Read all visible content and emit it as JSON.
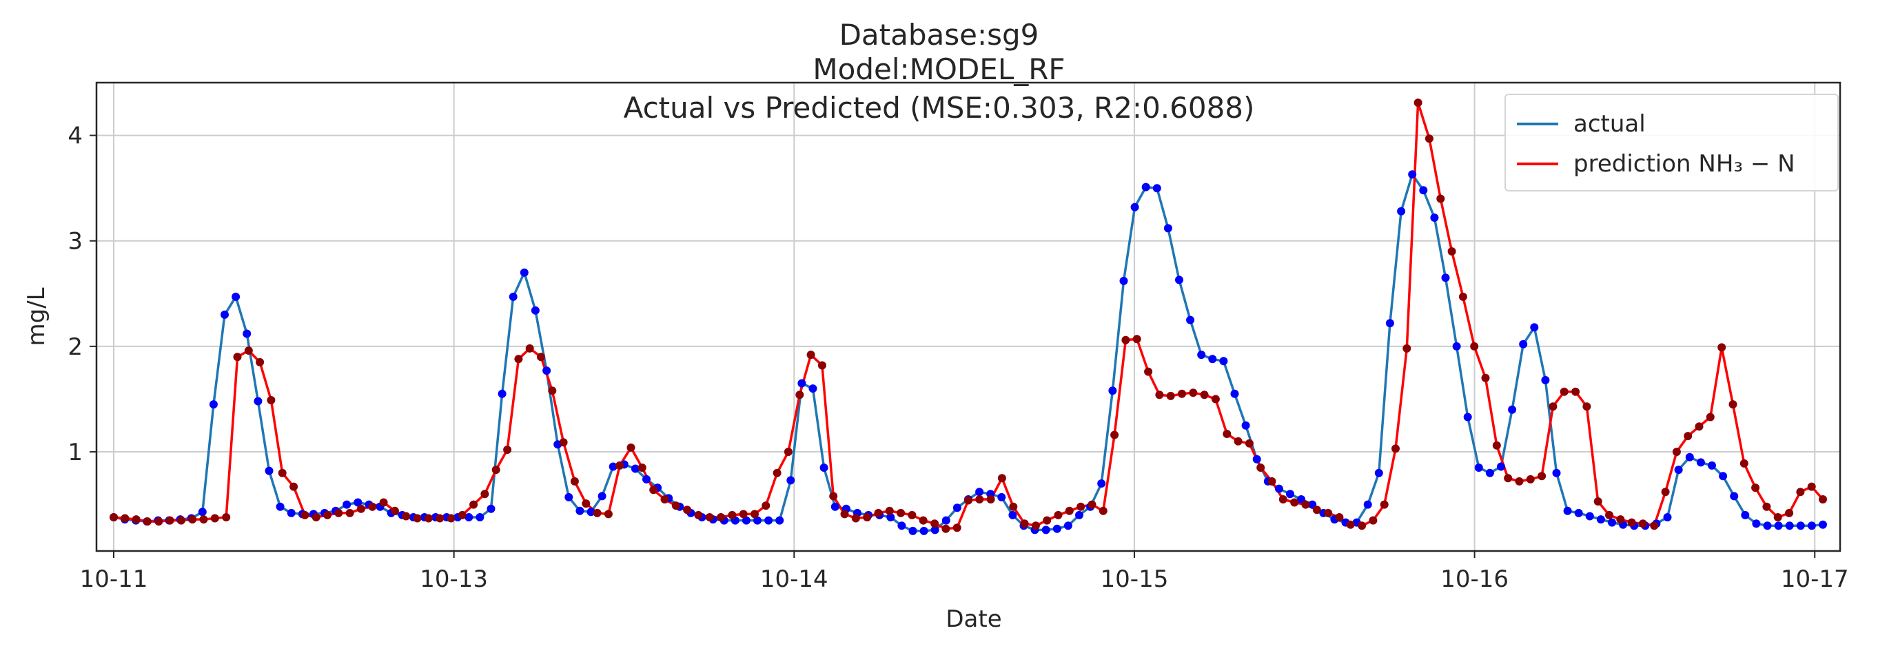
{
  "title": {
    "line1": "Database:sg9",
    "line2": "Model:MODEL_RF",
    "line3": "Actual vs Predicted (MSE:0.303, R2:0.6088)"
  },
  "legend": {
    "placement": "top-right",
    "items": [
      {
        "label": "actual",
        "color": "#1f77b4"
      },
      {
        "label": "prediction NH₃ − N",
        "color": "#ff0000"
      }
    ]
  },
  "chart_data": {
    "type": "line",
    "title": "Database:sg9 / Model:MODEL_RF / Actual vs Predicted (MSE:0.303, R2:0.6088)",
    "xlabel": "Date",
    "ylabel": "mg/L",
    "x_tick_labels": [
      "10-11",
      "10-13",
      "10-14",
      "10-15",
      "10-16",
      "10-17"
    ],
    "y_ticks": [
      1,
      2,
      3,
      4
    ],
    "x_range": [
      0,
      180
    ],
    "ylim": [
      0.06,
      4.5
    ],
    "grid": true,
    "point_colors": {
      "actual": "#0000ff",
      "prediction": "#8b0000"
    },
    "series": [
      {
        "name": "actual",
        "color": "#1f77b4",
        "values": [
          0.38,
          0.36,
          0.35,
          0.34,
          0.35,
          0.35,
          0.36,
          0.37,
          0.43,
          1.45,
          2.3,
          2.47,
          2.12,
          1.48,
          0.82,
          0.48,
          0.42,
          0.41,
          0.41,
          0.42,
          0.44,
          0.5,
          0.52,
          0.5,
          0.48,
          0.42,
          0.4,
          0.38,
          0.38,
          0.38,
          0.38,
          0.38,
          0.38,
          0.38,
          0.46,
          1.55,
          2.47,
          2.7,
          2.34,
          1.77,
          1.07,
          0.57,
          0.44,
          0.43,
          0.58,
          0.86,
          0.88,
          0.84,
          0.74,
          0.66,
          0.56,
          0.48,
          0.42,
          0.38,
          0.36,
          0.35,
          0.35,
          0.35,
          0.35,
          0.35,
          0.35,
          0.73,
          1.65,
          1.6,
          0.85,
          0.48,
          0.46,
          0.42,
          0.4,
          0.4,
          0.38,
          0.3,
          0.25,
          0.25,
          0.26,
          0.35,
          0.47,
          0.55,
          0.62,
          0.6,
          0.57,
          0.4,
          0.3,
          0.26,
          0.26,
          0.27,
          0.3,
          0.4,
          0.48,
          0.7,
          1.58,
          2.62,
          3.32,
          3.51,
          3.5,
          3.12,
          2.63,
          2.25,
          1.92,
          1.88,
          1.86,
          1.55,
          1.25,
          0.93,
          0.72,
          0.65,
          0.6,
          0.55,
          0.5,
          0.42,
          0.36,
          0.33,
          0.33,
          0.5,
          0.8,
          2.22,
          3.28,
          3.63,
          3.48,
          3.22,
          2.65,
          2.0,
          1.33,
          0.85,
          0.8,
          0.86,
          1.4,
          2.02,
          2.18,
          1.68,
          0.8,
          0.44,
          0.42,
          0.39,
          0.36,
          0.33,
          0.31,
          0.3,
          0.3,
          0.32,
          0.38,
          0.83,
          0.95,
          0.9,
          0.87,
          0.77,
          0.58,
          0.4,
          0.32,
          0.3,
          0.3,
          0.3,
          0.3,
          0.3,
          0.31
        ]
      },
      {
        "name": "prediction NH₃ − N",
        "color": "#ff0000",
        "values": [
          0.38,
          0.37,
          0.36,
          0.34,
          0.34,
          0.35,
          0.35,
          0.36,
          0.36,
          0.37,
          0.38,
          1.9,
          1.96,
          1.85,
          1.49,
          0.8,
          0.67,
          0.4,
          0.38,
          0.4,
          0.42,
          0.42,
          0.46,
          0.48,
          0.52,
          0.44,
          0.39,
          0.37,
          0.37,
          0.37,
          0.37,
          0.4,
          0.5,
          0.6,
          0.83,
          1.02,
          1.88,
          1.98,
          1.9,
          1.58,
          1.09,
          0.72,
          0.51,
          0.42,
          0.41,
          0.87,
          1.04,
          0.85,
          0.64,
          0.55,
          0.49,
          0.45,
          0.4,
          0.38,
          0.38,
          0.4,
          0.41,
          0.41,
          0.49,
          0.8,
          1.0,
          1.54,
          1.92,
          1.82,
          0.58,
          0.41,
          0.37,
          0.38,
          0.42,
          0.44,
          0.42,
          0.4,
          0.35,
          0.32,
          0.27,
          0.28,
          0.54,
          0.55,
          0.55,
          0.75,
          0.48,
          0.32,
          0.3,
          0.35,
          0.4,
          0.44,
          0.48,
          0.5,
          0.44,
          1.16,
          2.06,
          2.07,
          1.76,
          1.54,
          1.53,
          1.55,
          1.56,
          1.54,
          1.5,
          1.17,
          1.1,
          1.08,
          0.85,
          0.72,
          0.55,
          0.52,
          0.5,
          0.45,
          0.42,
          0.38,
          0.31,
          0.3,
          0.35,
          0.5,
          1.03,
          1.98,
          4.31,
          3.97,
          3.4,
          2.9,
          2.47,
          2.0,
          1.7,
          1.06,
          0.75,
          0.72,
          0.74,
          0.77,
          1.43,
          1.57,
          1.57,
          1.43,
          0.53,
          0.4,
          0.36,
          0.33,
          0.32,
          0.3,
          0.62,
          1.0,
          1.15,
          1.24,
          1.33,
          1.99,
          1.45,
          0.89,
          0.66,
          0.48,
          0.38,
          0.42,
          0.62,
          0.67,
          0.55
        ]
      }
    ]
  }
}
